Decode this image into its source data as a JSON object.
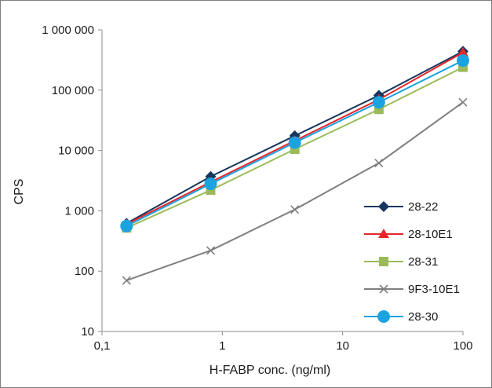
{
  "chart_data": {
    "type": "line",
    "x_scale": "log",
    "y_scale": "log",
    "xlabel": "H-FABP conc. (ng/ml)",
    "ylabel": "CPS",
    "xlim": [
      0.1,
      100
    ],
    "ylim": [
      10,
      1000000
    ],
    "x_ticks": [
      {
        "value": 0.1,
        "label": "0,1"
      },
      {
        "value": 1,
        "label": "1"
      },
      {
        "value": 10,
        "label": "10"
      },
      {
        "value": 100,
        "label": "100"
      }
    ],
    "y_ticks": [
      {
        "value": 10,
        "label": "10"
      },
      {
        "value": 100,
        "label": "100"
      },
      {
        "value": 1000,
        "label": "1 000"
      },
      {
        "value": 10000,
        "label": "10 000"
      },
      {
        "value": 100000,
        "label": "100 000"
      },
      {
        "value": 1000000,
        "label": "1 000 000"
      }
    ],
    "grid": false,
    "legend_position": "bottom-right",
    "x": [
      0.16,
      0.8,
      4,
      20,
      100
    ],
    "series": [
      {
        "name": "28-22",
        "color": "#17365d",
        "marker": "diamond",
        "values": [
          620,
          3700,
          17500,
          82000,
          440000
        ]
      },
      {
        "name": "28-10E1",
        "color": "#e8262a",
        "marker": "triangle",
        "values": [
          600,
          3000,
          14500,
          70000,
          420000
        ]
      },
      {
        "name": "28-31",
        "color": "#9bbb59",
        "marker": "square",
        "values": [
          520,
          2200,
          10500,
          48000,
          240000
        ]
      },
      {
        "name": "9F3-10E1",
        "color": "#7f7f7f",
        "marker": "x",
        "values": [
          70,
          220,
          1050,
          6200,
          63000
        ]
      },
      {
        "name": "28-30",
        "color": "#1ba3e0",
        "marker": "circle",
        "values": [
          560,
          2800,
          13500,
          63000,
          310000
        ]
      }
    ]
  }
}
